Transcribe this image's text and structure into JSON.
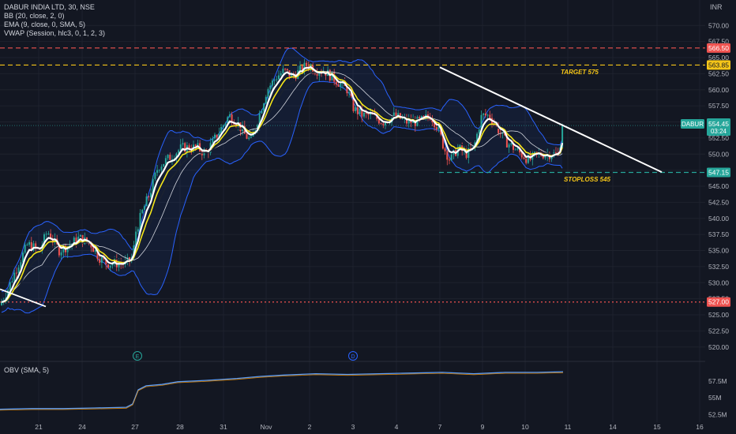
{
  "legend": {
    "symbol": "DABUR INDIA LTD, 30, NSE",
    "bb": "BB (20, close, 2, 0)",
    "ema": "EMA (9, close, 0, SMA, 5)",
    "vwap": "VWAP (Session, hlc3, 0, 1, 2, 3)",
    "obv": "OBV (SMA, 5)"
  },
  "currency": "INR",
  "colors": {
    "background": "#131722",
    "up": "#26a69a",
    "down": "#ef5350",
    "bollinger": "#2962ff",
    "target_line": "#f5c518",
    "stoploss_line": "#26a69a",
    "resistance_line": "#ef5350",
    "obv": "#5b9cf6"
  },
  "chart_data": {
    "type": "candlestick",
    "timeframe": "30",
    "x_tick_labels": [
      "21",
      "24",
      "27",
      "28",
      "31",
      "Nov",
      "2",
      "3",
      "4",
      "7",
      "9",
      "10",
      "11",
      "14",
      "15",
      "16"
    ],
    "y_ticks": [
      "570.00",
      "567.50",
      "565.00",
      "562.50",
      "560.00",
      "557.50",
      "555.00",
      "552.50",
      "550.00",
      "547.50",
      "545.00",
      "542.50",
      "540.00",
      "537.50",
      "535.00",
      "532.50",
      "530.00",
      "527.50",
      "525.00",
      "522.50",
      "520.00"
    ],
    "ylim": [
      518.5,
      572
    ],
    "price_path": [
      [
        0,
        526.5
      ],
      [
        10,
        529
      ],
      [
        20,
        532
      ],
      [
        35,
        536
      ],
      [
        50,
        535
      ],
      [
        60,
        538
      ],
      [
        75,
        535
      ],
      [
        90,
        536
      ],
      [
        100,
        537
      ],
      [
        115,
        536
      ],
      [
        125,
        534
      ],
      [
        135,
        533
      ],
      [
        150,
        533
      ],
      [
        160,
        533
      ],
      [
        168,
        534
      ],
      [
        172,
        538
      ],
      [
        180,
        541
      ],
      [
        190,
        544
      ],
      [
        200,
        548
      ],
      [
        210,
        549
      ],
      [
        220,
        550
      ],
      [
        230,
        551
      ],
      [
        240,
        551
      ],
      [
        250,
        551
      ],
      [
        260,
        550
      ],
      [
        270,
        552
      ],
      [
        280,
        554
      ],
      [
        290,
        556
      ],
      [
        300,
        555
      ],
      [
        310,
        553
      ],
      [
        318,
        552
      ],
      [
        328,
        556
      ],
      [
        338,
        560
      ],
      [
        350,
        562
      ],
      [
        360,
        563
      ],
      [
        370,
        562
      ],
      [
        380,
        563
      ],
      [
        390,
        564
      ],
      [
        400,
        563
      ],
      [
        410,
        563
      ],
      [
        420,
        562
      ],
      [
        430,
        561
      ],
      [
        440,
        560
      ],
      [
        448,
        557
      ],
      [
        460,
        556
      ],
      [
        470,
        556
      ],
      [
        485,
        555
      ],
      [
        500,
        556
      ],
      [
        515,
        555
      ],
      [
        530,
        555
      ],
      [
        545,
        556
      ],
      [
        555,
        554
      ],
      [
        562,
        551
      ],
      [
        570,
        549
      ],
      [
        580,
        551
      ],
      [
        590,
        550
      ],
      [
        600,
        551
      ],
      [
        610,
        556
      ],
      [
        620,
        556
      ],
      [
        630,
        554
      ],
      [
        640,
        552
      ],
      [
        650,
        551
      ],
      [
        660,
        550
      ],
      [
        670,
        549
      ],
      [
        680,
        550
      ],
      [
        690,
        550
      ],
      [
        700,
        550
      ],
      [
        707,
        550
      ],
      [
        713,
        554.45
      ]
    ],
    "price_lines": [
      {
        "label": "566.50",
        "price": 566.5,
        "style": "dashed",
        "color": "#ef5350"
      },
      {
        "label": "563.85",
        "price": 563.85,
        "style": "dashed",
        "color": "#f5c518"
      },
      {
        "label": "547.15",
        "price": 547.15,
        "style": "dashed",
        "color": "#26a69a"
      },
      {
        "label": "527.00",
        "price": 527.0,
        "style": "dotted",
        "color": "#ef5350"
      }
    ],
    "last_price": {
      "symbol": "DABUR",
      "price": "554.45",
      "countdown": "03:24",
      "value": 554.45
    },
    "annotations": [
      "TARGET 575",
      "STOPLOSS 545"
    ],
    "trendline": {
      "from": [
        557,
        563.5
      ],
      "to": [
        838,
        547.2
      ]
    },
    "early_trendline": {
      "from": [
        0,
        529
      ],
      "to": [
        58,
        526.3
      ]
    },
    "events": [
      "E",
      "D"
    ],
    "obv": {
      "title": "OBV (SMA, 5)",
      "y_ticks": [
        "57.5M",
        "55M",
        "52.5M"
      ],
      "ylim": [
        52.2,
        59.5
      ],
      "path": [
        [
          0,
          53.3
        ],
        [
          40,
          53.4
        ],
        [
          80,
          53.4
        ],
        [
          120,
          53.5
        ],
        [
          160,
          53.6
        ],
        [
          168,
          54.1
        ],
        [
          175,
          56.2
        ],
        [
          185,
          56.8
        ],
        [
          205,
          57.0
        ],
        [
          225,
          57.4
        ],
        [
          260,
          57.6
        ],
        [
          300,
          57.9
        ],
        [
          330,
          58.2
        ],
        [
          360,
          58.4
        ],
        [
          400,
          58.6
        ],
        [
          440,
          58.5
        ],
        [
          480,
          58.6
        ],
        [
          520,
          58.7
        ],
        [
          560,
          58.8
        ],
        [
          600,
          58.6
        ],
        [
          640,
          58.8
        ],
        [
          680,
          58.8
        ],
        [
          713,
          58.9
        ]
      ]
    }
  }
}
